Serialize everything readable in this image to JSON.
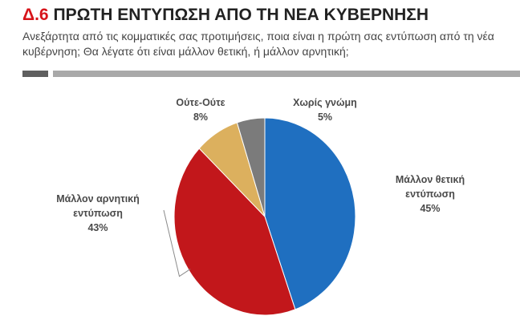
{
  "header": {
    "code": "Δ.6",
    "title": "ΠΡΩΤΗ ΕΝΤΥΠΩΣΗ ΑΠΟ ΤΗ ΝΕΑ ΚΥΒΕΡΝΗΣΗ",
    "subtitle": "Ανεξάρτητα από τις κομματικές σας προτιμήσεις, ποια είναι η πρώτη σας εντύπωση από τη νέα κυβέρνηση; Θα λέγατε ότι είναι μάλλον θετική, ή μάλλον αρνητική;"
  },
  "chart_data": {
    "type": "pie",
    "slices": [
      {
        "label": "Μάλλον θετική εντύπωση",
        "label_lines": [
          "Μάλλον θετική",
          "εντύπωση"
        ],
        "value": 45,
        "display": "45%",
        "color": "#1f6fc0"
      },
      {
        "label": "Μάλλον αρνητική εντύπωση",
        "label_lines": [
          "Μάλλον αρνητική",
          "εντύπωση"
        ],
        "value": 43,
        "display": "43%",
        "color": "#c2171b"
      },
      {
        "label": "Ούτε-Ούτε",
        "label_lines": [
          "Ούτε-Ούτε"
        ],
        "value": 8,
        "display": "8%",
        "color": "#dcb05e"
      },
      {
        "label": "Χωρίς γνώμη",
        "label_lines": [
          "Χωρίς γνώμη"
        ],
        "value": 5,
        "display": "5%",
        "color": "#7b7b7b"
      }
    ]
  }
}
